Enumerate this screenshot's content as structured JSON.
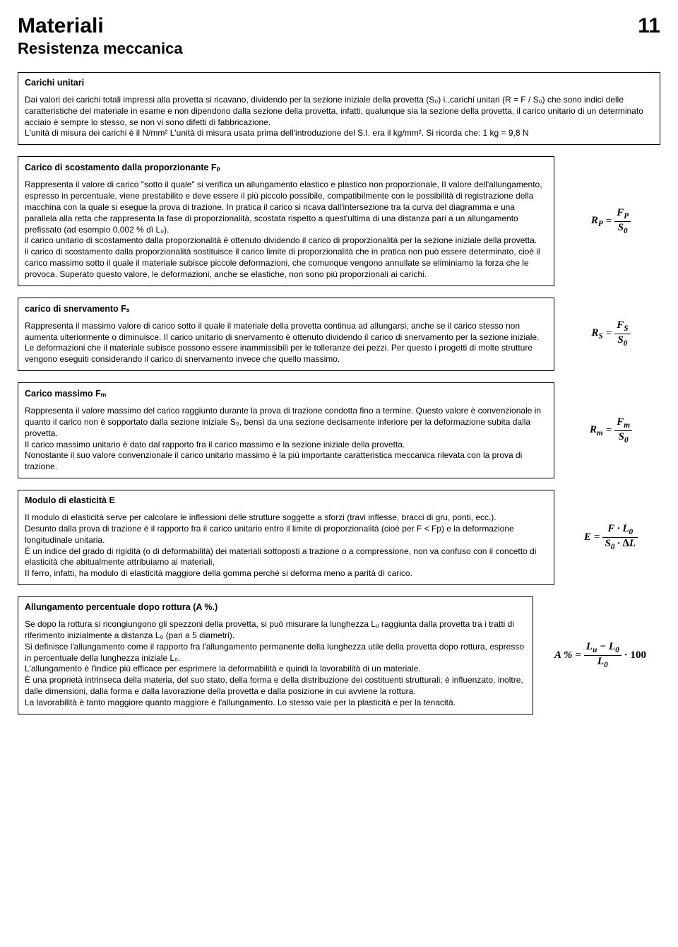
{
  "header": {
    "title": "Materiali",
    "page_number": "11",
    "subtitle": "Resistenza meccanica"
  },
  "sections": {
    "s1": {
      "title": "Carichi unitari",
      "body": "Dai valori dei carichi totali impressi alla provetta si ricavano, dividendo per la sezione iniziale della provetta (S₀) i..carichi unitari (R = F / S₀) che sono indici delle caratteristiche del materiale in esame e non dipendono dalla sezione della provetta, infatti, qualunque sia la sezione della provetta, il carico unitario di un determinato acciaio è sempre lo stesso, se non vi sono difetti di fabbricazione.\nL'unità di misura dei carichi è il N/mm²    L'unità di misura usata prima dell'introduzione del S.I. era il kg/mm². Si ricorda che: 1 kg = 9,8 N"
    },
    "s2": {
      "title": "Carico di scostamento dalla proporzionante Fₚ",
      "body": "Rappresenta il valore di carico \"sotto il quale\" si verifica un allungamento elastico e plastico non proporzionale, II valore dell'allungamento, espresso in percentuale, viene prestabilito e deve essere il più piccolo possibile, compatibilmente con le possibilità di registrazione della macchina con la quale si esegue la prova di trazione. In pratica il carico si ricava dall'intersezione tra la curva del diagramma e una parallela alla retta che rappresenta la fase di proporzionalità, scostata rispetto a quest'ultima di una distanza pari a un allungamento prefissato (ad esempio 0,002 % dì L₀).\nil carico unitario di scostamento dalla proporzionalità è ottenuto dividendo il carico di proporzionalità per la sezione iniziale della provetta.\nli carico di scostamento dalla proporzionalità sostituisce il carico limite di proporzionalità che in pratica non può essere determinato, cioè il carico massimo sotto il quale il materiale subisce piccole deformazioni, che comunque vengono annullate se eliminiamo la forza che le provoca. Superato questo valore, le deformazioni, anche se elastiche, non sono più proporzionali ai carichi.",
      "formula": {
        "lhs": "R<sub>P</sub>",
        "num": "F<sub>P</sub>",
        "den": "S<sub>0</sub>"
      }
    },
    "s3": {
      "title": "carico di snervamento Fₛ",
      "body": "Rappresenta il massimo valore di carico sotto il quale il materiale della provetta continua ad allungarsi, anche se il carico stesso non aumenta ulteriormente o diminuisce. Il carico unitario di snervamento è ottenuto dividendo il carico di snervamento per la sezione iniziale.\nLe deformazioni che il materiale subisce possono essere inammissibili per le tolleranze dei pezzi. Per questo i progetti di molte strutture vengono eseguiti considerando il carico di snervamento invece che quello massimo.",
      "formula": {
        "lhs": "R<sub>S</sub>",
        "num": "F<sub>S</sub>",
        "den": "S<sub>0</sub>"
      }
    },
    "s4": {
      "title": "Carico massimo Fₘ",
      "body": "Rappresenta il valore massimo del carico raggiunto durante la prova di trazione condotta fino a termine. Questo valore è convenzionale in quanto il carico non è sopportato dalla sezione iniziale S₀, bensì da una sezione decisamente inferiore per la deformazione subita dalla provetta.\nIl carico massimo unitario è dato dal rapporto fra il carico massimo e la sezione iniziale della provetta.\nNonostante il suo valore convenzionale il carico unitario massimo è la più importante caratteristica meccanica rilevata con la prova di trazione.",
      "formula": {
        "lhs": "R<sub>m</sub>",
        "num": "F<sub>m</sub>",
        "den": "S<sub>0</sub>"
      }
    },
    "s5": {
      "title": "Modulo di elasticità E",
      "body": "II modulo di elasticità serve per calcolare le inflessioni delle strutture soggette a sforzi (travi inflesse, bracci di gru, ponti, ecc.).\nDesunto dalla prova di trazione è il rapporto fra il carico unitario entro il limite di proporzionalità (cioè per F < Fp) e la deformazione longitudinale unitaria.\nÈ un indice del grado di rigidità (o di deformabilità) dei materiali sottoposti a trazione o a compressione, non va confuso con il concetto di elasticità che abitualmente attribuiamo ai materiali,\nII ferro, infatti, ha modulo di elasticità maggiore della gomma perché si deforma meno a parità dì carico.",
      "formula": {
        "lhs": "E",
        "num": "F · L<sub>0</sub>",
        "den": "S<sub>0</sub> · ∆L"
      }
    },
    "s6": {
      "title": "Allungamento percentuale dopo rottura (A %.)",
      "body": "Se dopo la rottura si ricongiungono gli spezzoni della provetta, si può misurare la lunghezza Lᵤ raggiunta dalla provetta tra i tratti di riferimento inizialmente a distanza L₀ (pari a 5 diametri).\nSi definisce l'allungamento come il rapporto fra l'allungamento permanente della lunghezza utile della provetta dopo rottura, espresso in percentuale della lunghezza iniziale L₀.\nL'allungamento è l'indice più efficace per esprimere la deformabilità e quindi la lavorabilità di un materiale.\nÈ una proprietà intrinseca della materia, del suo stato, della forma e della distribuzione dei costituenti strutturali; è influenzato, inoltre, dalle dimensioni, dalla forma e dalla lavorazione della provetta e dalla posizione in cui avviene la rottura.\nLa lavorabilità è tanto maggiore quanto maggiore è l'allungamento. Lo stesso vale per la plasticità e per la tenacità.",
      "formula": {
        "lhs": "A %",
        "num": "L<sub>u</sub> − L<sub>0</sub>",
        "den": "L<sub>0</sub>",
        "suffix": " · 100"
      }
    }
  }
}
